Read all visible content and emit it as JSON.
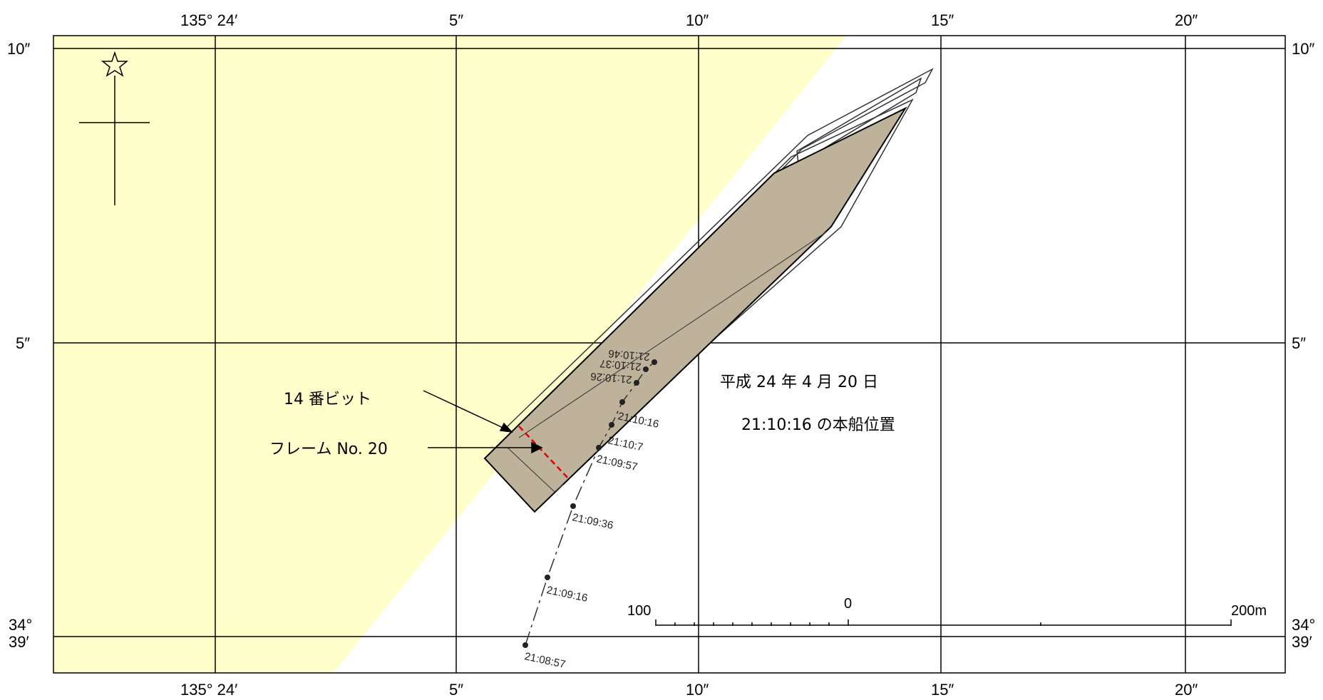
{
  "map": {
    "colors": {
      "land": "#FFFFCC",
      "ship_fill": "#BEB29A",
      "ship_stroke": "#000000",
      "marker_line": "#E00000",
      "grid": "#000000"
    },
    "top_axis_labels": [
      "135° 24′",
      "5″",
      "10″",
      "15″",
      "20″"
    ],
    "bottom_axis_labels": [
      "135° 24′",
      "5″",
      "10″",
      "15″",
      "20″"
    ],
    "left_axis_labels": [
      "10″",
      "5″",
      "34°",
      "39′"
    ],
    "right_axis_labels": [
      "10″",
      "5″",
      "34°",
      "39′"
    ],
    "date_caption": "平成 24 年 4 月 20 日",
    "position_caption": "21:10:16 の本船位置",
    "callouts": {
      "bitt": "14 番ビット",
      "frame": "フレーム No. 20"
    },
    "track_times": [
      "21:08:57",
      "21:09:16",
      "21:09:36",
      "21:09:57",
      "21:10:7",
      "21:10:16",
      "21:10:26",
      "21:10:37",
      "21:10:46"
    ],
    "scale_bar": {
      "left_label": "100",
      "middle_label": "0",
      "right_label": "200m"
    },
    "north_symbol": "star-north-arrow"
  }
}
